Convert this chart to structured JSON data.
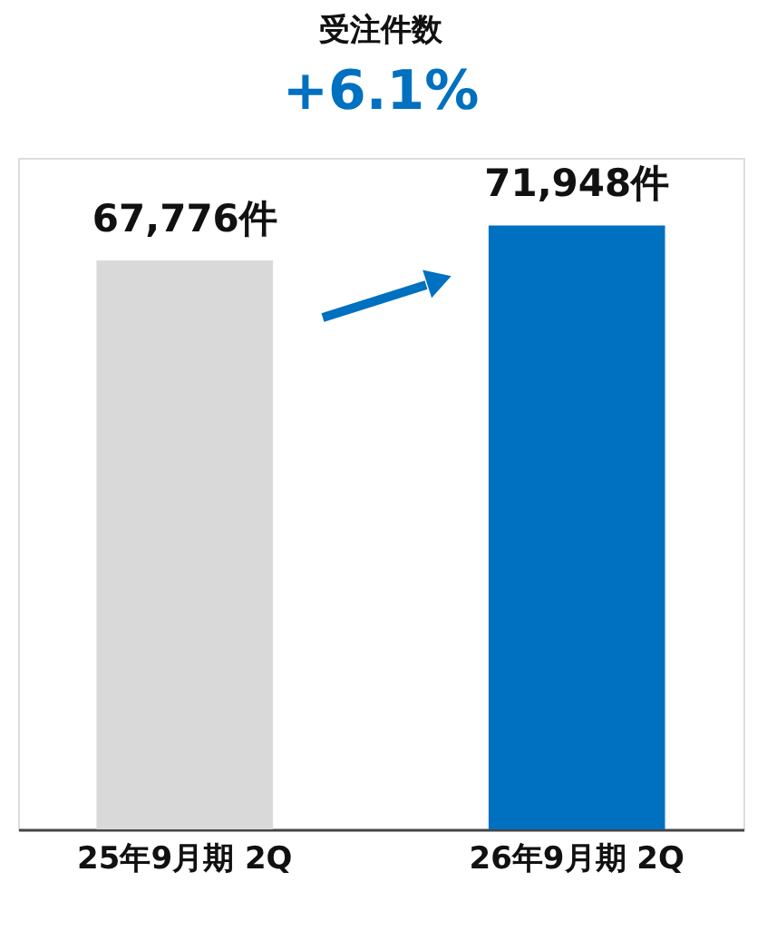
{
  "chart_data": {
    "type": "bar",
    "title": "受注件数",
    "subtitle": "+6.1%",
    "categories": [
      "25年9月期 2Q",
      "26年9月期 2Q"
    ],
    "values": [
      67776,
      71948
    ],
    "colors": [
      "#d9d9d9",
      "#0070c0"
    ],
    "value_labels": [
      "67,776件",
      "71,948件"
    ],
    "tick_labels": "x"
  }
}
